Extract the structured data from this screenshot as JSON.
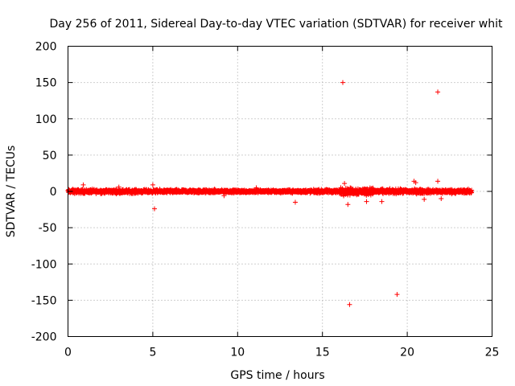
{
  "chart_data": {
    "type": "scatter",
    "title": "Day 256 of 2011, Sidereal Day-to-day VTEC variation (SDTVAR) for receiver whit",
    "xlabel": "GPS time / hours",
    "ylabel": "SDTVAR / TECUs",
    "xlim": [
      0,
      25
    ],
    "ylim": [
      -200,
      200
    ],
    "xticks": [
      0,
      5,
      10,
      15,
      20,
      25
    ],
    "xtick_labels": [
      "0",
      "5",
      "10",
      "15",
      "20",
      "25"
    ],
    "yticks": [
      200,
      150,
      100,
      50,
      0,
      -50,
      -100,
      -150,
      -200
    ],
    "ytick_labels": [
      "200",
      "150",
      "100",
      "50",
      "0",
      "-50",
      "-100",
      "-150",
      "-200"
    ],
    "grid": true,
    "marker": "+",
    "color": "#ff0000",
    "series": [
      {
        "name": "SDTVAR",
        "x_range": [
          0,
          23.8
        ],
        "band_noise": [
          {
            "x_from": 0,
            "x_to": 4,
            "amp": 4
          },
          {
            "x_from": 4,
            "x_to": 9,
            "amp": 3.5
          },
          {
            "x_from": 9,
            "x_to": 14,
            "amp": 3
          },
          {
            "x_from": 14,
            "x_to": 16,
            "amp": 3.5
          },
          {
            "x_from": 16,
            "x_to": 18,
            "amp": 7
          },
          {
            "x_from": 18,
            "x_to": 21,
            "amp": 4.5
          },
          {
            "x_from": 21,
            "x_to": 23.8,
            "amp": 4
          }
        ],
        "outliers": [
          {
            "x": 16.2,
            "y": 150
          },
          {
            "x": 21.8,
            "y": 137
          },
          {
            "x": 16.6,
            "y": -156
          },
          {
            "x": 19.4,
            "y": -142
          },
          {
            "x": 5.1,
            "y": -24
          },
          {
            "x": 5.0,
            "y": 9
          },
          {
            "x": 0.9,
            "y": 9
          },
          {
            "x": 13.4,
            "y": -15
          },
          {
            "x": 16.3,
            "y": 11
          },
          {
            "x": 16.5,
            "y": -18
          },
          {
            "x": 17.6,
            "y": -14
          },
          {
            "x": 18.5,
            "y": -14
          },
          {
            "x": 20.4,
            "y": 14
          },
          {
            "x": 20.5,
            "y": 12
          },
          {
            "x": 21.8,
            "y": 14
          },
          {
            "x": 21.0,
            "y": -11
          },
          {
            "x": 22.0,
            "y": -10
          },
          {
            "x": 11.1,
            "y": 5
          },
          {
            "x": 9.2,
            "y": -6
          },
          {
            "x": 3.0,
            "y": 6
          }
        ]
      }
    ]
  }
}
